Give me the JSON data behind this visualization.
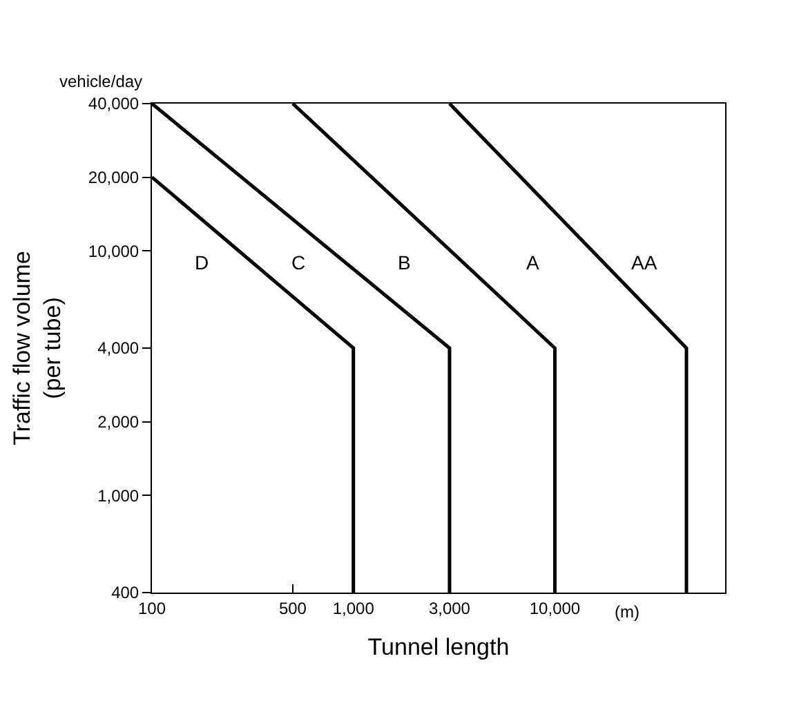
{
  "chart_data": {
    "type": "line",
    "xlabel": "Tunnel length",
    "ylabel": "Traffic flow volume\n(per tube)",
    "log": "xy",
    "marker": "none",
    "line_style": "solid",
    "xlim": [
      100,
      70000
    ],
    "ylim": [
      400,
      40000
    ],
    "xticks": [
      100,
      500,
      {
        "value": 1000,
        "label": "1,000"
      },
      {
        "value": 3000,
        "label": "3,000"
      },
      {
        "value": 10000,
        "label": "10,000"
      }
    ],
    "yticks": [
      400,
      {
        "value": 1000,
        "label": "1,000"
      },
      {
        "value": 2000,
        "label": "2,000"
      },
      {
        "value": 4000,
        "label": "4,000"
      },
      {
        "value": 10000,
        "label": "10,000"
      },
      {
        "value": 20000,
        "label": "20,000"
      },
      {
        "value": 40000,
        "label": "40,000"
      }
    ],
    "series": [
      {
        "color": "#000000",
        "x": [
          100,
          1000,
          1000
        ],
        "values": [
          20000,
          4000,
          400
        ]
      },
      {
        "color": "#000000",
        "x": [
          100,
          3000,
          3000
        ],
        "values": [
          40000,
          4000,
          400
        ]
      },
      {
        "color": "#000000",
        "x": [
          500,
          10000,
          10000
        ],
        "values": [
          40000,
          4000,
          400
        ]
      },
      {
        "color": "#000000",
        "x": [
          3000,
          45000,
          45000
        ],
        "values": [
          40000,
          4000,
          400
        ]
      }
    ],
    "annotations": [
      "D",
      "C",
      "B",
      "A",
      "AA",
      "vehicle/day",
      "(m)"
    ]
  }
}
